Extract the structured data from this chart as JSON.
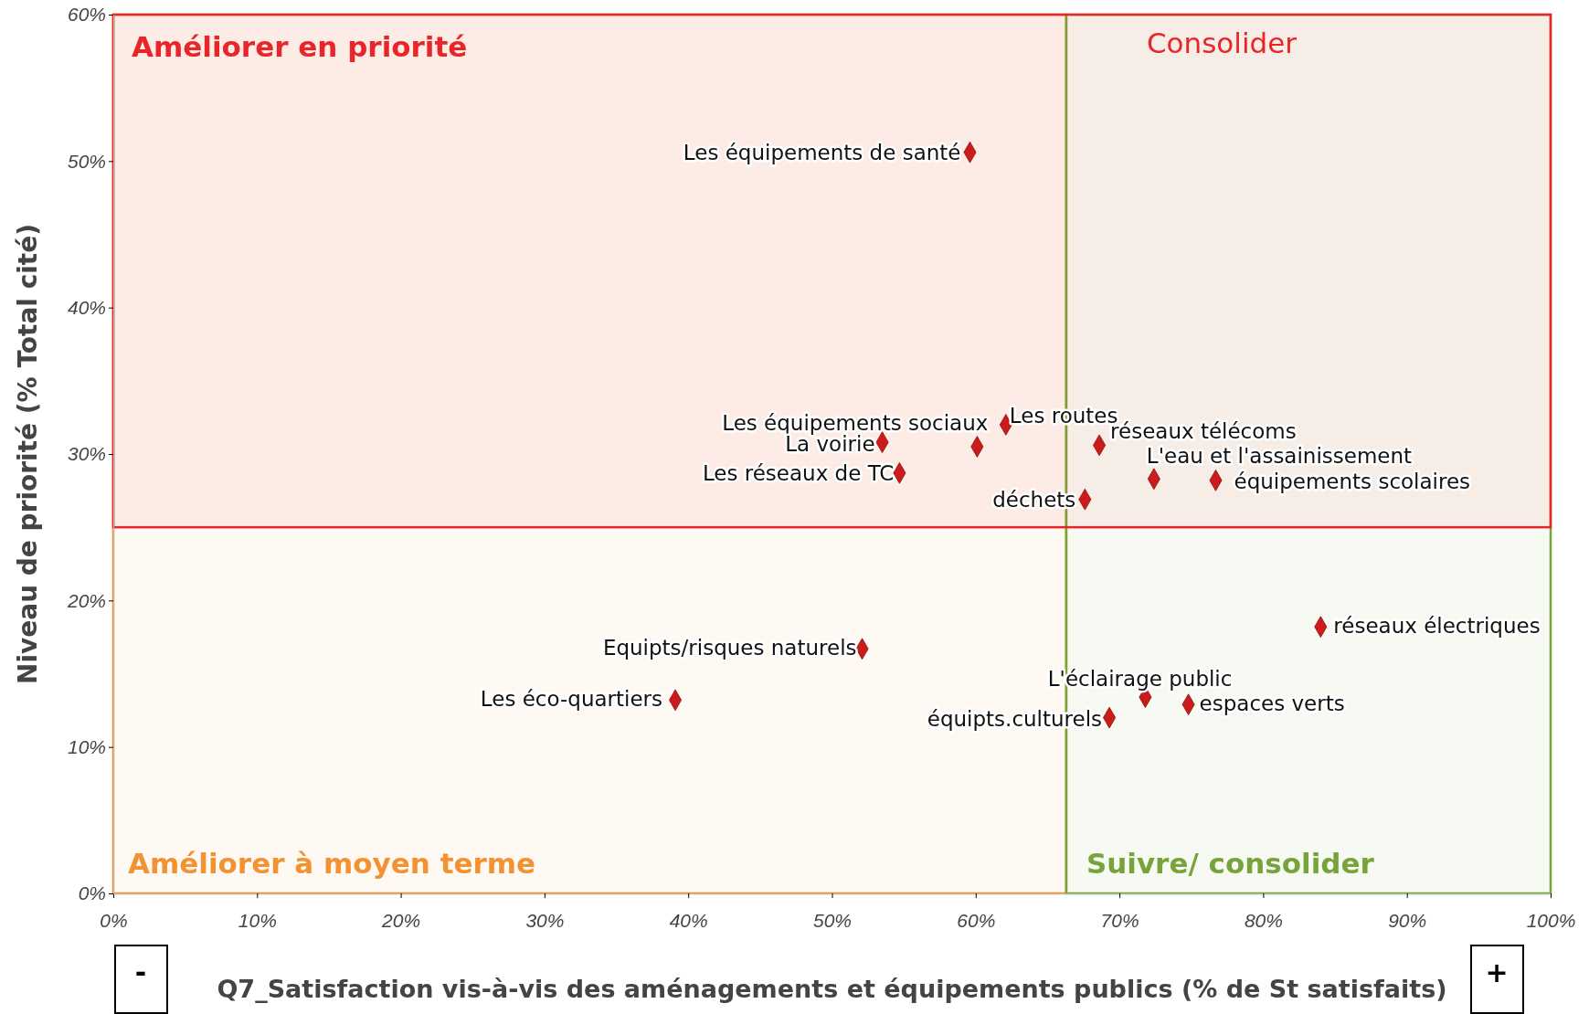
{
  "chart_data": {
    "type": "scatter",
    "xlabel": "Q7_Satisfaction vis-à-vis des aménagements et équipements publics (% de St satisfaits)",
    "ylabel": "Niveau de priorité (% Total cité)",
    "xlim": [
      0,
      100
    ],
    "ylim": [
      0,
      60
    ],
    "xticks": [
      {
        "value": 0,
        "label": "0%"
      },
      {
        "value": 10,
        "label": "10%"
      },
      {
        "value": 20,
        "label": "20%"
      },
      {
        "value": 30,
        "label": "30%"
      },
      {
        "value": 40,
        "label": "40%"
      },
      {
        "value": 50,
        "label": "50%"
      },
      {
        "value": 60,
        "label": "60%"
      },
      {
        "value": 70,
        "label": "70%"
      },
      {
        "value": 80,
        "label": "80%"
      },
      {
        "value": 90,
        "label": "90%"
      },
      {
        "value": 100,
        "label": "100%"
      }
    ],
    "yticks": [
      {
        "value": 0,
        "label": "0%"
      },
      {
        "value": 10,
        "label": "10%"
      },
      {
        "value": 20,
        "label": "20%"
      },
      {
        "value": 30,
        "label": "30%"
      },
      {
        "value": 40,
        "label": "40%"
      },
      {
        "value": 50,
        "label": "50%"
      },
      {
        "value": 60,
        "label": "60%"
      }
    ],
    "marker": "diamond",
    "grid": false,
    "legend": false,
    "series": [
      {
        "name": "Les équipements  de santé",
        "color": "#cc1b1b",
        "x": [
          59.6
        ],
        "values": [
          50.6
        ]
      },
      {
        "name": "Les équipements  sociaux",
        "color": "#cc1b1b",
        "x": [
          60.1
        ],
        "values": [
          30.5
        ]
      },
      {
        "name": "La voirie",
        "color": "#cc1b1b",
        "x": [
          53.5
        ],
        "values": [
          30.8
        ]
      },
      {
        "name": "Les routes",
        "color": "#cc1b1b",
        "x": [
          62.1
        ],
        "values": [
          32.0
        ]
      },
      {
        "name": "Les réseaux  de TC",
        "color": "#cc1b1b",
        "x": [
          54.7
        ],
        "values": [
          28.7
        ]
      },
      {
        "name": "réseaux télécoms",
        "color": "#cc1b1b",
        "x": [
          68.6
        ],
        "values": [
          30.6
        ]
      },
      {
        "name": "L'eau et l'assainissement",
        "color": "#cc1b1b",
        "x": [
          72.4
        ],
        "values": [
          28.3
        ]
      },
      {
        "name": "équipements  scolaires",
        "color": "#cc1b1b",
        "x": [
          76.7
        ],
        "values": [
          28.2
        ]
      },
      {
        "name": "déchets",
        "color": "#cc1b1b",
        "x": [
          67.6
        ],
        "values": [
          26.9
        ]
      },
      {
        "name": "réseaux électriques",
        "color": "#cc1b1b",
        "x": [
          84.0
        ],
        "values": [
          18.2
        ]
      },
      {
        "name": "Equipts/risques  naturels",
        "color": "#cc1b1b",
        "x": [
          52.1
        ],
        "values": [
          16.7
        ]
      },
      {
        "name": "Les éco-quartiers",
        "color": "#cc1b1b",
        "x": [
          39.1
        ],
        "values": [
          13.2
        ]
      },
      {
        "name": "L'éclairage public",
        "color": "#cc1b1b",
        "x": [
          71.8
        ],
        "values": [
          13.4
        ]
      },
      {
        "name": "équipts.culturels",
        "color": "#cc1b1b",
        "x": [
          69.3
        ],
        "values": [
          12.0
        ]
      },
      {
        "name": "espaces verts",
        "color": "#cc1b1b",
        "x": [
          74.8
        ],
        "values": [
          12.9
        ]
      }
    ],
    "bands": [
      {
        "axis": "x",
        "from": 0,
        "to": 66.3,
        "color": "#f39233",
        "label": "Améliorer  à moyen terme"
      },
      {
        "axis": "x",
        "from": 66.3,
        "to": 100,
        "color": "#77a33a",
        "label": "Suivre/ consolider"
      },
      {
        "axis": "y",
        "from": 25,
        "to": 60,
        "color": "#e8262a",
        "label": "Améliorer en priorité"
      }
    ],
    "annotations": [
      "Consolider",
      "-",
      "+"
    ]
  }
}
